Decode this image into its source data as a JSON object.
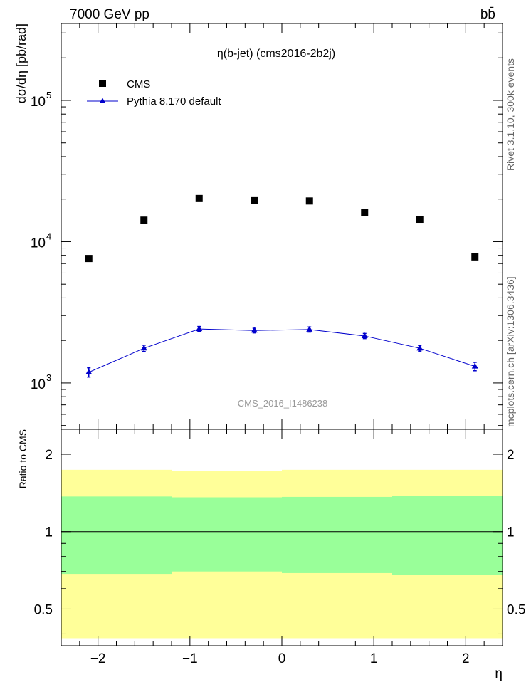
{
  "header": {
    "left": "7000 GeV pp",
    "right": "bb̄"
  },
  "side_labels": {
    "rivet": "Rivet 3.1.10,  300k events",
    "mcplots": "mcplots.cern.ch [arXiv:1306.3436]"
  },
  "colors": {
    "mc_line": "#0000cc",
    "band_outer": "#ffff99",
    "band_inner": "#99ff99",
    "data_marker": "#000000"
  },
  "chart_data": [
    {
      "type": "scatter",
      "title": "η(b-jet) (cms2016-2b2j)",
      "ylabel": "dσ/dη [pb/rad]",
      "xlabel": "",
      "watermark": "CMS_2016_I1486238",
      "yscale": "log",
      "xlim": [
        -2.4,
        2.4
      ],
      "ylim": [
        470,
        350000
      ],
      "xticks": [
        -2,
        -1,
        0,
        1,
        2
      ],
      "yticks_major": [
        1000,
        10000,
        100000
      ],
      "ytick_labels": [
        "10",
        "10",
        "10"
      ],
      "ytick_exponents": [
        "3",
        "4",
        "5"
      ],
      "legend_position": "top-left",
      "series": [
        {
          "name": "CMS",
          "marker": "square",
          "x": [
            -2.1,
            -1.5,
            -0.9,
            -0.3,
            0.3,
            0.9,
            1.5,
            2.1
          ],
          "y": [
            7600,
            14200,
            20200,
            19500,
            19400,
            16000,
            14400,
            7800
          ]
        },
        {
          "name": "Pythia 8.170 default",
          "marker": "triangle",
          "x": [
            -2.1,
            -1.5,
            -0.9,
            -0.3,
            0.3,
            0.9,
            1.5,
            2.1
          ],
          "y": [
            1190,
            1760,
            2410,
            2350,
            2390,
            2150,
            1760,
            1310
          ],
          "yerr_low": [
            1100,
            1670,
            2310,
            2260,
            2290,
            2060,
            1680,
            1220
          ],
          "yerr_high": [
            1280,
            1850,
            2510,
            2440,
            2490,
            2240,
            1840,
            1400
          ]
        }
      ]
    },
    {
      "type": "area",
      "ylabel": "Ratio to CMS",
      "xlabel": "η",
      "yscale": "log",
      "xlim": [
        -2.4,
        2.4
      ],
      "ylim": [
        0.36,
        2.5
      ],
      "xticks": [
        -2,
        -1,
        0,
        1,
        2
      ],
      "xtick_labels": [
        "−2",
        "−1",
        "0",
        "1",
        "2"
      ],
      "yticks_major": [
        0.5,
        1,
        2
      ],
      "ytick_labels": [
        "0.5",
        "1",
        "2"
      ],
      "reference_line": 1,
      "bands": {
        "x_edges": [
          -2.4,
          -1.2,
          0,
          1.2,
          2.4
        ],
        "outer_low": [
          0.385,
          0.385,
          0.385,
          0.385
        ],
        "outer_high": [
          1.74,
          1.72,
          1.74,
          1.74
        ],
        "inner_low": [
          0.685,
          0.7,
          0.69,
          0.68
        ],
        "inner_high": [
          1.37,
          1.36,
          1.365,
          1.375
        ]
      }
    }
  ]
}
